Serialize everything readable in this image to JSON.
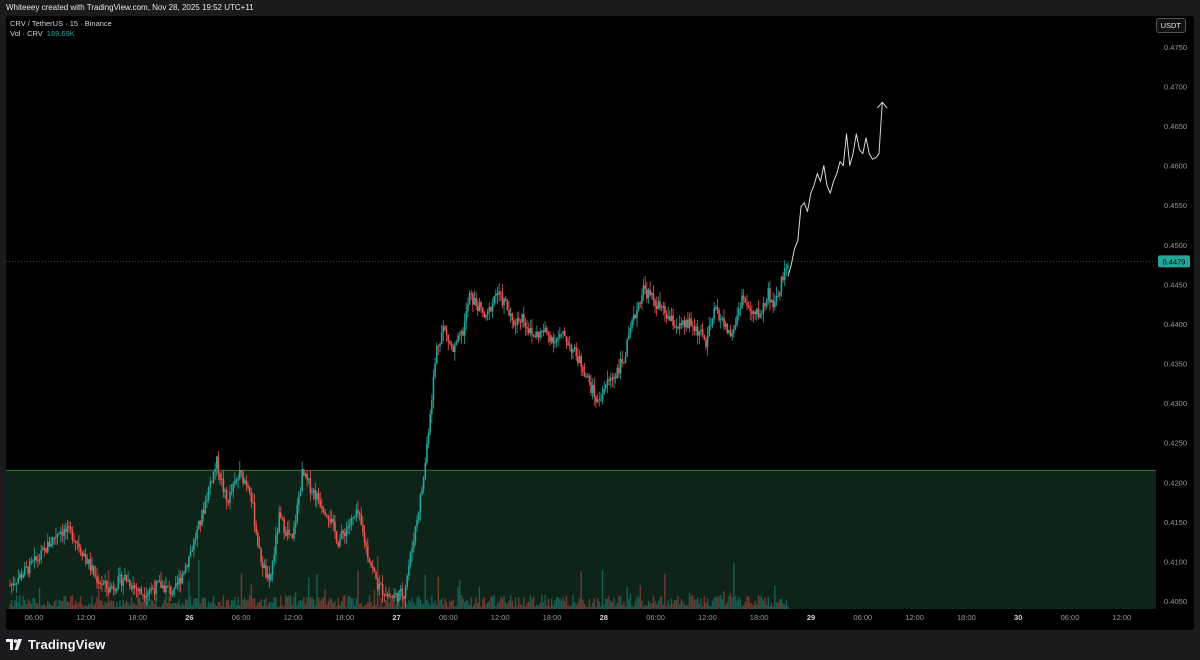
{
  "caption": "Whiteeey created with TradingView.com, Nov 28, 2025 19:52 UTC+11",
  "legend": {
    "symbol_line": "CRV / TetherUS · 15 · Binance",
    "volume_label": "Vol · CRV",
    "volume_value": "189.69K"
  },
  "currency": "USDT",
  "footer": {
    "brand": "TradingView"
  },
  "colors": {
    "up": "#26a69a",
    "down": "#ef5350",
    "zone_fill": "#0e2418",
    "zone_line": "#2e7d32",
    "price_badge": "#26a69a",
    "drawing": "#d8d8d8"
  },
  "chart_data": {
    "type": "candlestick",
    "ylim": [
      0.404,
      0.4775
    ],
    "y_ticks": [
      "0.4050",
      "0.4100",
      "0.4150",
      "0.4200",
      "0.4250",
      "0.4300",
      "0.4350",
      "0.4400",
      "0.4450",
      "0.4500",
      "0.4550",
      "0.4600",
      "0.4650",
      "0.4700",
      "0.4750"
    ],
    "x_ticks": [
      "06:00",
      "12:00",
      "18:00",
      "26",
      "06:00",
      "12:00",
      "18:00",
      "27",
      "06:00",
      "12:00",
      "18:00",
      "28",
      "06:00",
      "12:00",
      "18:00",
      "29",
      "06:00",
      "12:00",
      "18:00",
      "30",
      "06:00",
      "12:00"
    ],
    "bold_x_ticks": [
      "26",
      "27",
      "28",
      "29",
      "30"
    ],
    "current_price": "0.4479",
    "support_zone": {
      "from": 0.404,
      "to": 0.4215
    },
    "price_path": [
      [
        0,
        0.407
      ],
      [
        18,
        0.4105
      ],
      [
        30,
        0.414
      ],
      [
        38,
        0.4135
      ],
      [
        45,
        0.411
      ],
      [
        52,
        0.408
      ],
      [
        60,
        0.4065
      ],
      [
        70,
        0.408
      ],
      [
        80,
        0.406
      ],
      [
        92,
        0.407
      ],
      [
        100,
        0.406
      ],
      [
        108,
        0.41
      ],
      [
        116,
        0.415
      ],
      [
        122,
        0.42
      ],
      [
        126,
        0.4225
      ],
      [
        132,
        0.4175
      ],
      [
        140,
        0.421
      ],
      [
        146,
        0.4195
      ],
      [
        152,
        0.411
      ],
      [
        158,
        0.407
      ],
      [
        164,
        0.4155
      ],
      [
        172,
        0.4125
      ],
      [
        178,
        0.421
      ],
      [
        186,
        0.4185
      ],
      [
        194,
        0.416
      ],
      [
        200,
        0.4125
      ],
      [
        206,
        0.4145
      ],
      [
        212,
        0.416
      ],
      [
        218,
        0.411
      ],
      [
        224,
        0.407
      ],
      [
        232,
        0.4055
      ],
      [
        240,
        0.406
      ],
      [
        246,
        0.413
      ],
      [
        252,
        0.4205
      ],
      [
        256,
        0.429
      ],
      [
        260,
        0.437
      ],
      [
        264,
        0.4395
      ],
      [
        270,
        0.4365
      ],
      [
        276,
        0.439
      ],
      [
        280,
        0.4435
      ],
      [
        286,
        0.442
      ],
      [
        290,
        0.4405
      ],
      [
        296,
        0.444
      ],
      [
        302,
        0.4425
      ],
      [
        306,
        0.44
      ],
      [
        312,
        0.441
      ],
      [
        318,
        0.4385
      ],
      [
        326,
        0.439
      ],
      [
        332,
        0.438
      ],
      [
        338,
        0.4385
      ],
      [
        342,
        0.437
      ],
      [
        348,
        0.435
      ],
      [
        354,
        0.432
      ],
      [
        358,
        0.43
      ],
      [
        362,
        0.432
      ],
      [
        368,
        0.4335
      ],
      [
        374,
        0.4355
      ],
      [
        378,
        0.439
      ],
      [
        382,
        0.442
      ],
      [
        386,
        0.4445
      ],
      [
        390,
        0.4435
      ],
      [
        396,
        0.442
      ],
      [
        402,
        0.4405
      ],
      [
        408,
        0.4395
      ],
      [
        414,
        0.44
      ],
      [
        420,
        0.439
      ],
      [
        424,
        0.4375
      ],
      [
        430,
        0.442
      ],
      [
        436,
        0.4395
      ],
      [
        440,
        0.4385
      ],
      [
        446,
        0.4435
      ],
      [
        452,
        0.441
      ],
      [
        458,
        0.4415
      ],
      [
        462,
        0.444
      ],
      [
        466,
        0.442
      ],
      [
        470,
        0.4455
      ],
      [
        474,
        0.447
      ]
    ],
    "projection": [
      [
        0.446,
        0.4475
      ],
      [
        0.4495,
        0.4505
      ],
      [
        0.4548,
        0.4553
      ],
      [
        0.4542,
        0.4565
      ],
      [
        0.4575,
        0.459
      ],
      [
        0.458,
        0.46
      ],
      [
        0.4575,
        0.4565
      ],
      [
        0.458,
        0.459
      ],
      [
        0.4605,
        0.46
      ],
      [
        0.464,
        0.46
      ],
      [
        0.4615,
        0.464
      ],
      [
        0.462,
        0.4615
      ],
      [
        0.4635,
        0.4615
      ],
      [
        0.4608,
        0.461
      ],
      [
        0.4615,
        0.468
      ]
    ]
  }
}
